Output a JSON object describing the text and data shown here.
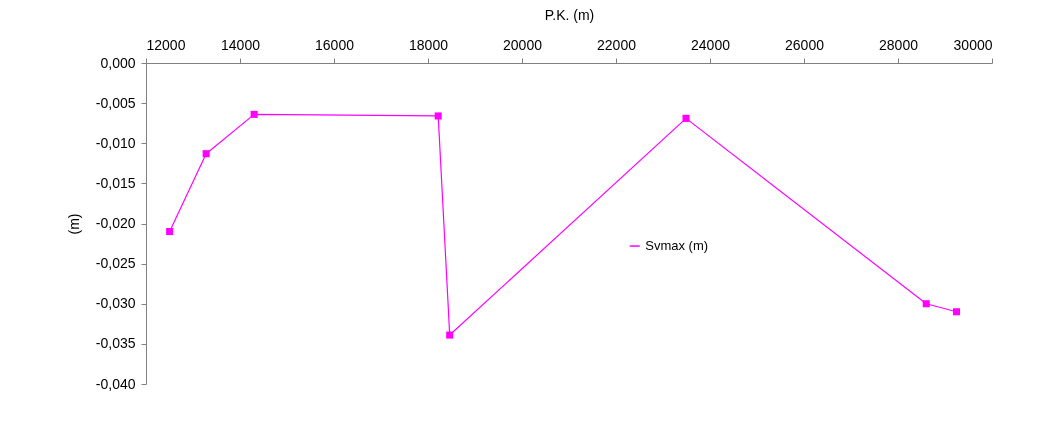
{
  "chart_data": {
    "type": "line",
    "xlabel": "P.K. (m)",
    "ylabel": "(m)",
    "x": [
      12503,
      13280,
      14301,
      18217,
      18462,
      23490,
      28601,
      29245
    ],
    "series": [
      {
        "name": "Svmax (m)",
        "color": "#ff00ff",
        "values": [
          -0.021,
          -0.0113,
          -0.0064,
          -0.0066,
          -0.0339,
          -0.0069,
          -0.03,
          -0.031
        ]
      }
    ],
    "xlim": [
      12000,
      30000
    ],
    "xticks": [
      12000,
      14000,
      16000,
      18000,
      20000,
      22000,
      24000,
      26000,
      28000,
      30000
    ],
    "ylim": [
      -0.04,
      0
    ],
    "yticks": [
      {
        "value": 0,
        "label": "0,000"
      },
      {
        "value": -0.005,
        "label": "-0,005"
      },
      {
        "value": -0.01,
        "label": "-0,010"
      },
      {
        "value": -0.015,
        "label": "-0,015"
      },
      {
        "value": -0.02,
        "label": "-0,020"
      },
      {
        "value": -0.025,
        "label": "-0,025"
      },
      {
        "value": -0.03,
        "label": "-0,030"
      },
      {
        "value": -0.035,
        "label": "-0,035"
      },
      {
        "value": -0.04,
        "label": "-0,040"
      }
    ],
    "grid": false,
    "legend": "right",
    "marker": "square",
    "line_style": "solid"
  }
}
